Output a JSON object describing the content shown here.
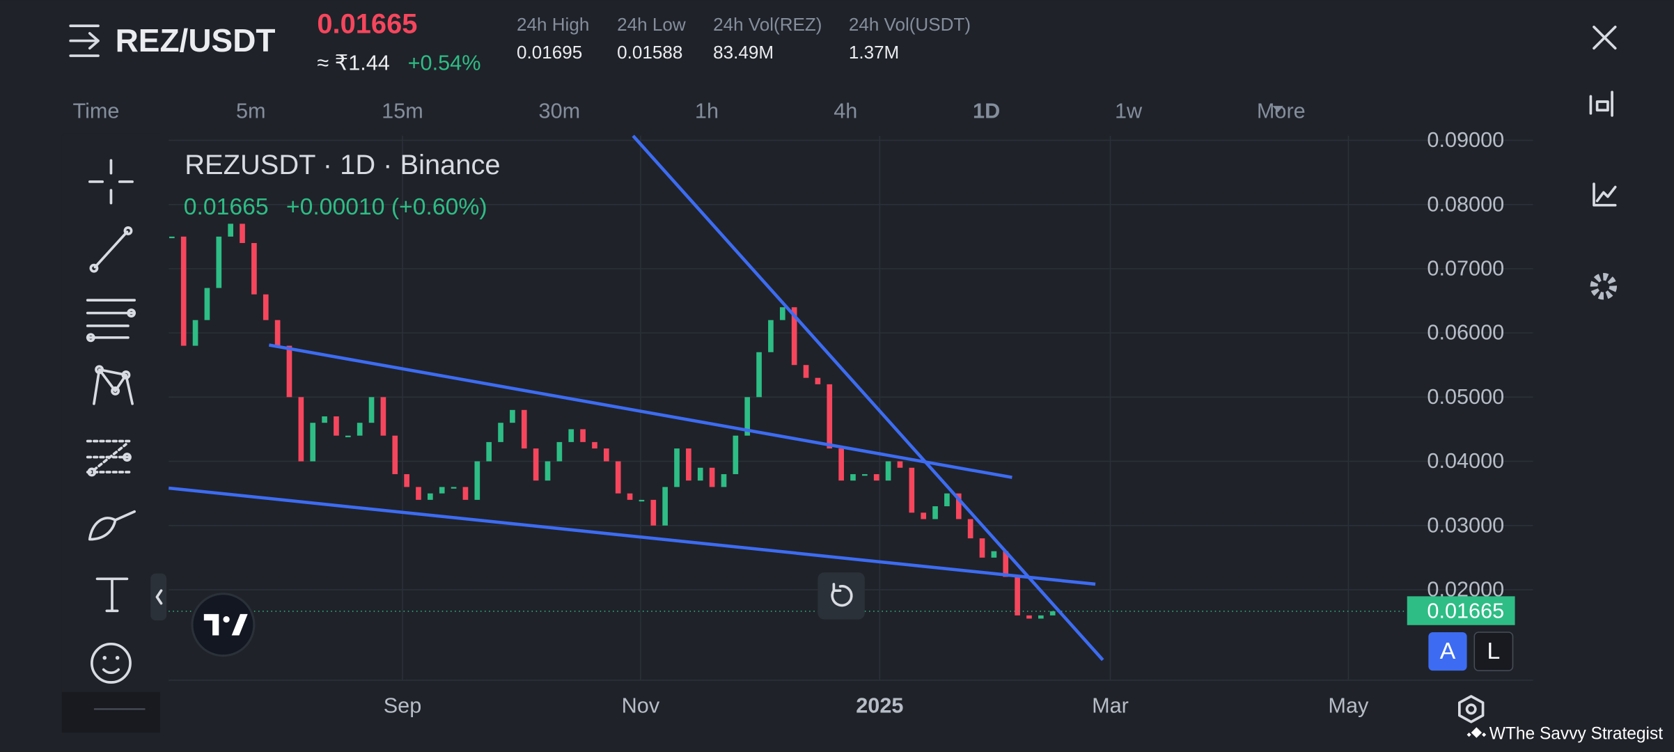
{
  "header": {
    "pair": "REZ/USDT",
    "price": "0.01665",
    "inr_price": "≈ ₹1.44",
    "change": "+0.54%"
  },
  "stats": [
    {
      "label": "24h High",
      "value": "0.01695"
    },
    {
      "label": "24h Low",
      "value": "0.01588"
    },
    {
      "label": "24h Vol(REZ)",
      "value": "83.49M"
    },
    {
      "label": "24h Vol(USDT)",
      "value": "1.37M"
    }
  ],
  "timeframes": [
    "Time",
    "5m",
    "15m",
    "30m",
    "1h",
    "4h",
    "1D",
    "1w",
    "More"
  ],
  "chart_data": {
    "type": "candlestick",
    "title": "REZUSDT · 1D · Binance",
    "legend_close": "0.01665",
    "legend_change": "+0.00010 (+0.60%)",
    "up_color": "#2ebd85",
    "down_color": "#f6465d",
    "close": [
      0.075,
      0.058,
      0.062,
      0.067,
      0.075,
      0.077,
      0.074,
      0.066,
      0.062,
      0.058,
      0.05,
      0.04,
      0.046,
      0.047,
      0.044,
      0.044,
      0.046,
      0.05,
      0.044,
      0.038,
      0.036,
      0.034,
      0.035,
      0.036,
      0.036,
      0.034,
      0.04,
      0.043,
      0.046,
      0.048,
      0.042,
      0.037,
      0.04,
      0.043,
      0.045,
      0.043,
      0.042,
      0.04,
      0.035,
      0.034,
      0.034,
      0.03,
      0.036,
      0.042,
      0.037,
      0.039,
      0.036,
      0.038,
      0.044,
      0.05,
      0.057,
      0.062,
      0.064,
      0.055,
      0.053,
      0.052,
      0.042,
      0.037,
      0.038,
      0.038,
      0.037,
      0.04,
      0.039,
      0.032,
      0.031,
      0.033,
      0.035,
      0.031,
      0.028,
      0.025,
      0.026,
      0.022,
      0.016,
      0.0155,
      0.016,
      0.01665
    ],
    "last_price": 0.01665,
    "ylim": [
      0.0059,
      0.0907
    ],
    "yticks": [
      {
        "value": 0.02,
        "label": "0.02000"
      },
      {
        "value": 0.03,
        "label": "0.03000"
      },
      {
        "value": 0.04,
        "label": "0.04000"
      },
      {
        "value": 0.05,
        "label": "0.05000"
      },
      {
        "value": 0.06,
        "label": "0.06000"
      },
      {
        "value": 0.07,
        "label": "0.07000"
      },
      {
        "value": 0.08,
        "label": "0.08000"
      },
      {
        "value": 0.09,
        "label": "0.09000"
      }
    ],
    "x_labels": [
      "Sep",
      "Nov",
      "2025",
      "Mar",
      "May"
    ],
    "grid": true,
    "scale_buttons": [
      "A",
      "L"
    ]
  },
  "watermark": "WThe Savvy Strategist"
}
